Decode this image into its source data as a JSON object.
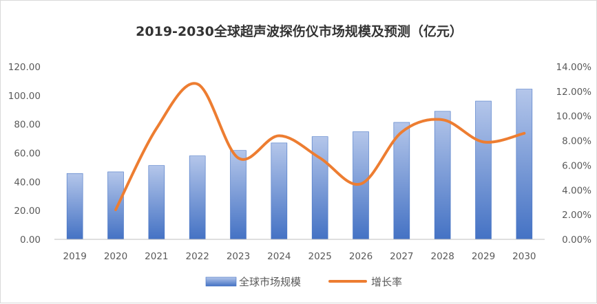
{
  "chart_data": {
    "type": "bar",
    "title": "2019-2030全球超声波探伤仪市场规模及预测（亿元）",
    "categories": [
      "2019",
      "2020",
      "2021",
      "2022",
      "2023",
      "2024",
      "2025",
      "2026",
      "2027",
      "2028",
      "2029",
      "2030"
    ],
    "series": [
      {
        "name": "全球市场规模",
        "type": "bar",
        "axis": "left",
        "values": [
          45.8,
          46.9,
          51.3,
          58.0,
          61.8,
          67.0,
          71.4,
          74.8,
          81.3,
          89.0,
          96.1,
          104.4
        ]
      },
      {
        "name": "增长率",
        "type": "line",
        "axis": "right",
        "smooth": true,
        "values": [
          null,
          2.4,
          9.0,
          12.6,
          6.6,
          8.4,
          6.6,
          4.5,
          8.7,
          9.7,
          7.9,
          8.6
        ]
      }
    ],
    "ylim_left": [
      0,
      120
    ],
    "ylim_right": [
      0,
      14
    ],
    "yticks_left": [
      "0.00",
      "20.00",
      "40.00",
      "60.00",
      "80.00",
      "100.00",
      "120.00"
    ],
    "yticks_right": [
      "0.00%",
      "2.00%",
      "4.00%",
      "6.00%",
      "8.00%",
      "10.00%",
      "12.00%",
      "14.00%"
    ],
    "grid": false,
    "legend_position": "bottom",
    "colors": {
      "bar_top": "#b4c6ea",
      "bar_bottom": "#4472c4",
      "line": "#ed7d31"
    }
  }
}
